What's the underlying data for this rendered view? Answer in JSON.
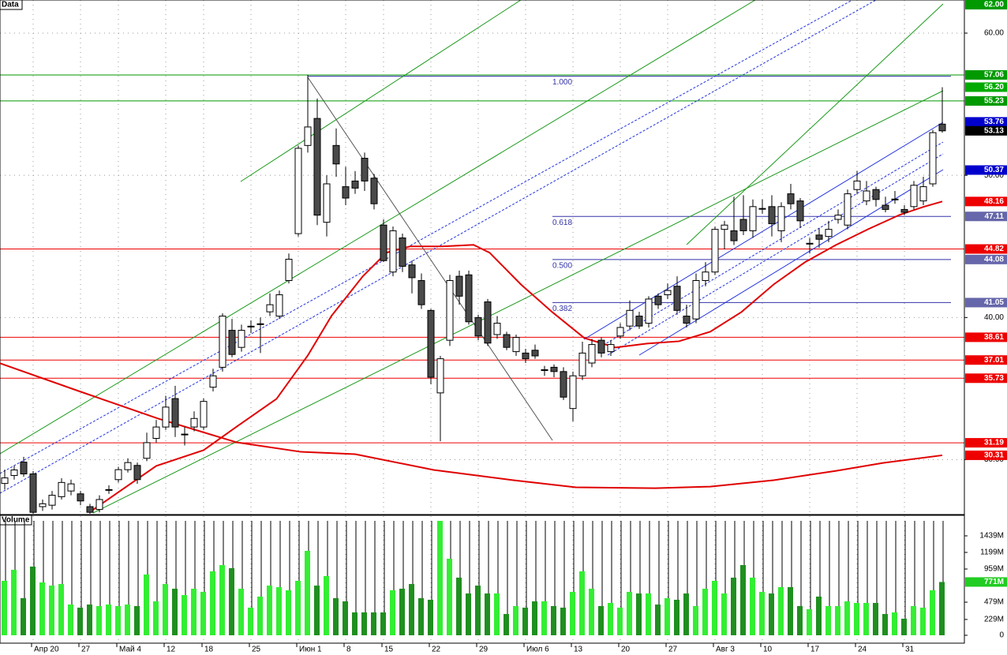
{
  "chart_data": [
    {
      "type": "candlestick",
      "title": "Data",
      "categories": [
        null,
        null,
        null,
        "Апр 20",
        null,
        null,
        null,
        null,
        "27",
        null,
        null,
        null,
        "Май 4",
        null,
        null,
        null,
        null,
        "12",
        null,
        null,
        null,
        "18",
        null,
        null,
        null,
        null,
        "25",
        null,
        null,
        null,
        null,
        "Июн 1",
        null,
        null,
        null,
        null,
        "8",
        null,
        null,
        null,
        "15",
        null,
        null,
        null,
        null,
        "22",
        null,
        null,
        null,
        null,
        "29",
        null,
        null,
        null,
        null,
        "Июл 6",
        null,
        null,
        null,
        null,
        "13",
        null,
        null,
        null,
        null,
        "20",
        null,
        null,
        null,
        null,
        "27",
        null,
        null,
        null,
        null,
        "Авг 3",
        null,
        null,
        null,
        null,
        "10",
        null,
        null,
        null,
        null,
        "17",
        null,
        null,
        null,
        null,
        "24",
        null,
        null,
        null,
        null,
        "31",
        null,
        null,
        null,
        null
      ],
      "open": [
        28.33,
        28.89,
        29.83,
        29.0,
        26.7,
        26.8,
        27.4,
        27.8,
        27.6,
        26.7,
        26.5,
        27.9,
        28.6,
        29.3,
        29.6,
        30.1,
        31.5,
        32.3,
        34.3,
        31.8,
        32.3,
        32.3,
        35.1,
        36.5,
        39.1,
        37.9,
        39.39,
        39.56,
        40.4,
        40.1,
        42.6,
        45.9,
        52.1,
        54.0,
        46.7,
        52.1,
        49.2,
        49.6,
        51.2,
        49.8,
        46.5,
        43.2,
        45.6,
        43.7,
        42.6,
        40.5,
        34.7,
        38.4,
        42.9,
        43.0,
        40.0,
        41.1,
        38.8,
        38.8,
        37.6,
        37.5,
        37.7,
        36.33,
        36.5,
        36.2,
        33.6,
        35.9,
        36.8,
        38.4,
        37.6,
        38.7,
        39.4,
        40.1,
        39.6,
        41.5,
        41.6,
        42.2,
        40.1,
        39.9,
        42.6,
        43.2,
        46.2,
        46.1,
        46.9,
        46.1,
        47.67,
        47.8,
        46.1,
        48.7,
        48.2,
        45.22,
        45.8,
        45.7,
        46.9,
        46.5,
        49.0,
        48.2,
        49.0,
        47.9,
        48.33,
        47.6,
        47.8,
        48.2,
        49.4,
        53.6
      ],
      "high": [
        29.3,
        29.6,
        30.2,
        29.2,
        27.2,
        27.8,
        28.7,
        28.6,
        27.8,
        26.9,
        27.5,
        28.2,
        29.5,
        30.1,
        29.8,
        31.9,
        32.8,
        34.5,
        35.2,
        32.3,
        33.4,
        34.3,
        36.4,
        40.3,
        39.9,
        39.5,
        39.8,
        40.0,
        41.7,
        41.9,
        44.5,
        52.1,
        57.06,
        55.4,
        50.0,
        53.3,
        50.6,
        50.3,
        51.6,
        50.1,
        46.9,
        46.4,
        45.9,
        44.0,
        43.1,
        40.6,
        37.3,
        43.0,
        43.3,
        43.3,
        40.2,
        41.3,
        40.1,
        39.0,
        38.8,
        37.8,
        38.1,
        36.6,
        36.7,
        36.5,
        36.2,
        38.3,
        38.5,
        38.6,
        38.4,
        39.6,
        41.2,
        40.4,
        41.5,
        41.7,
        42.4,
        42.9,
        40.9,
        43.1,
        43.9,
        46.4,
        46.8,
        48.5,
        48.6,
        48.3,
        48.3,
        48.6,
        48.1,
        49.4,
        48.4,
        45.6,
        46.3,
        46.8,
        47.6,
        49.0,
        50.3,
        49.6,
        49.2,
        48.5,
        48.9,
        47.9,
        49.6,
        49.9,
        53.2,
        56.2
      ],
      "low": [
        27.9,
        28.6,
        28.8,
        26.2,
        26.4,
        26.5,
        27.2,
        27.5,
        26.8,
        26.2,
        26.3,
        27.6,
        28.4,
        29.1,
        28.3,
        29.9,
        31.2,
        32.1,
        31.6,
        31.0,
        32.0,
        32.1,
        34.8,
        36.2,
        37.2,
        37.6,
        38.9,
        37.5,
        40.1,
        39.9,
        42.4,
        45.7,
        51.6,
        46.5,
        45.7,
        49.9,
        47.9,
        48.7,
        48.9,
        47.6,
        43.9,
        42.9,
        43.2,
        41.7,
        40.6,
        35.3,
        31.3,
        38.0,
        40.9,
        39.5,
        38.4,
        38.0,
        38.5,
        37.7,
        37.3,
        36.8,
        37.1,
        35.9,
        35.8,
        34.2,
        32.7,
        35.6,
        36.5,
        37.2,
        37.3,
        38.5,
        39.1,
        39.2,
        39.3,
        40.6,
        41.3,
        40.2,
        39.3,
        39.6,
        42.2,
        43.0,
        44.8,
        45.1,
        45.8,
        45.6,
        47.3,
        45.7,
        45.3,
        47.6,
        46.3,
        44.5,
        44.9,
        45.3,
        46.6,
        46.2,
        48.7,
        47.9,
        47.8,
        47.4,
        48.0,
        47.2,
        47.6,
        47.9,
        49.2,
        53.0
      ],
      "close": [
        28.72,
        29.28,
        29.0,
        26.3,
        26.9,
        27.5,
        28.4,
        28.3,
        27.1,
        26.3,
        27.2,
        27.9,
        29.3,
        29.8,
        28.6,
        31.2,
        32.3,
        33.7,
        32.3,
        31.8,
        32.9,
        34.1,
        35.9,
        40.1,
        37.4,
        39.1,
        39.39,
        39.56,
        40.9,
        41.6,
        44.1,
        51.9,
        53.4,
        47.2,
        49.4,
        50.8,
        48.4,
        49.1,
        49.6,
        48.0,
        44.0,
        46.1,
        43.6,
        42.8,
        40.9,
        35.8,
        37.1,
        42.6,
        41.5,
        39.7,
        38.7,
        38.2,
        39.6,
        37.9,
        38.6,
        37.1,
        37.3,
        36.33,
        36.2,
        34.4,
        35.9,
        37.5,
        38.1,
        37.5,
        38.1,
        39.3,
        40.5,
        39.4,
        41.3,
        40.9,
        41.9,
        40.5,
        39.6,
        42.6,
        43.2,
        46.2,
        46.5,
        45.4,
        46.1,
        47.8,
        47.67,
        46.6,
        47.8,
        48.0,
        46.8,
        45.22,
        45.5,
        46.2,
        47.2,
        48.7,
        49.6,
        48.9,
        48.3,
        47.6,
        48.33,
        47.4,
        49.3,
        49.2,
        53.0,
        53.13
      ],
      "up_color": "#ffffff",
      "down_color": "#4a4a4a",
      "ylim": [
        26.2,
        62.33
      ],
      "yticks": [
        {
          "value": 30,
          "label": "30.00"
        },
        {
          "value": 40,
          "label": "40.00"
        },
        {
          "value": 50,
          "label": "50.00"
        },
        {
          "value": 60,
          "label": "60.00"
        }
      ],
      "grid": true,
      "moving_averages": [
        {
          "color": "#e00000",
          "x": [
            9,
            16,
            21,
            24.5,
            28.7,
            32,
            34.5,
            37.8,
            40.3,
            42.8,
            46.2,
            49.5,
            51.2,
            54.5,
            57.8,
            61.2,
            64.5,
            67.8,
            71.2,
            74.5,
            77.8,
            81.2,
            84.5,
            87.8,
            91.2,
            94.5,
            97,
            99
          ],
          "values": [
            26.33,
            29.56,
            30.67,
            32.33,
            34.28,
            37.33,
            40.11,
            42.89,
            44.56,
            45.0,
            45.0,
            45.11,
            44.56,
            42.33,
            40.39,
            38.56,
            37.89,
            38.17,
            38.33,
            39.0,
            40.39,
            42.33,
            43.89,
            45.11,
            46.22,
            47.22,
            47.78,
            48.16
          ]
        },
        {
          "color": "#e00000",
          "x": [
            -0.5,
            7.8,
            16.2,
            24.5,
            31.2,
            37,
            45.3,
            53.7,
            60.3,
            68.7,
            74.5,
            81.2,
            87.8,
            92.8,
            99
          ],
          "values": [
            36.78,
            34.83,
            32.89,
            31.22,
            30.56,
            30.39,
            29.28,
            28.56,
            28.06,
            28.0,
            28.11,
            28.56,
            29.22,
            29.78,
            30.31
          ]
        }
      ],
      "fib": {
        "labels": [
          "1.000",
          "0.618",
          "0.500",
          "0.382"
        ],
        "values": [
          56.97,
          47.11,
          44.08,
          41.05
        ],
        "color": "#3333aa"
      },
      "price_labels": [
        {
          "value": 62.0,
          "label": "62.00",
          "color": "#009900",
          "line": false
        },
        {
          "value": 57.06,
          "label": "57.06",
          "color": "#009900",
          "line": true
        },
        {
          "value": 56.2,
          "label": "56.20",
          "color": "#00aa00",
          "line": false
        },
        {
          "value": 55.23,
          "label": "55.23",
          "color": "#009900",
          "line": true
        },
        {
          "value": 53.76,
          "label": "53.76",
          "color": "#0000cc",
          "line": false
        },
        {
          "value": 53.13,
          "label": "53.13",
          "color": "#000000",
          "line": false
        },
        {
          "value": 50.37,
          "label": "50.37",
          "color": "#0000cc",
          "line": false
        },
        {
          "value": 48.16,
          "label": "48.16",
          "color": "#ee0000",
          "line": false
        },
        {
          "value": 47.11,
          "label": "47.11",
          "color": "#6666aa",
          "line": false
        },
        {
          "value": 44.82,
          "label": "44.82",
          "color": "#ee0000",
          "line": true
        },
        {
          "value": 44.08,
          "label": "44.08",
          "color": "#6666aa",
          "line": false
        },
        {
          "value": 41.05,
          "label": "41.05",
          "color": "#6666aa",
          "line": false
        },
        {
          "value": 38.61,
          "label": "38.61",
          "color": "#ee0000",
          "line": true
        },
        {
          "value": 37.01,
          "label": "37.01",
          "color": "#ee0000",
          "line": true
        },
        {
          "value": 35.73,
          "label": "35.73",
          "color": "#ee0000",
          "line": true
        },
        {
          "value": 31.19,
          "label": "31.19",
          "color": "#ee0000",
          "line": true
        },
        {
          "value": 30.31,
          "label": "30.31",
          "color": "#ee0000",
          "line": false
        }
      ]
    },
    {
      "type": "bar",
      "title": "Volume",
      "values": [
        788,
        948,
        537,
        994,
        765,
        719,
        742,
        445,
        400,
        445,
        423,
        445,
        423,
        445,
        423,
        879,
        491,
        742,
        674,
        582,
        674,
        628,
        925,
        1016,
        971,
        674,
        400,
        560,
        719,
        697,
        651,
        788,
        1222,
        719,
        857,
        537,
        491,
        331,
        331,
        331,
        331,
        651,
        674,
        742,
        537,
        514,
        1656,
        1108,
        834,
        605,
        719,
        605,
        605,
        308,
        423,
        400,
        491,
        491,
        423,
        400,
        628,
        925,
        674,
        423,
        468,
        400,
        628,
        605,
        605,
        445,
        537,
        514,
        605,
        423,
        674,
        788,
        605,
        834,
        1016,
        834,
        628,
        605,
        697,
        697,
        423,
        377,
        560,
        423,
        423,
        491,
        468,
        468,
        468,
        308,
        331,
        240,
        423,
        400,
        651,
        771
      ],
      "last_value_label": "771M",
      "last_color": "#22cc22",
      "up_color": "#33ee33",
      "down_color": "#1f8f1f",
      "ylim": [
        0,
        1656
      ],
      "yticks": [
        {
          "value": 0,
          "label": "0"
        },
        {
          "value": 229,
          "label": "229M"
        },
        {
          "value": 479,
          "label": "479M"
        },
        {
          "value": 959,
          "label": "959M"
        },
        {
          "value": 1199,
          "label": "1199M"
        },
        {
          "value": 1439,
          "label": "1439M"
        }
      ]
    }
  ]
}
